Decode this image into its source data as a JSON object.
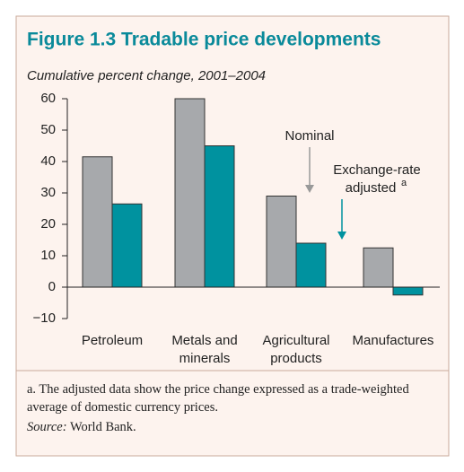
{
  "chart_data": {
    "type": "bar",
    "title": "Figure 1.3  Tradable price developments",
    "subtitle": "Cumulative percent change, 2001–2004",
    "categories": [
      "Petroleum",
      "Metals and minerals",
      "Agricultural products",
      "Manufactures"
    ],
    "series": [
      {
        "name": "Nominal",
        "color": "#a7a9ac",
        "values": [
          41.5,
          60,
          29,
          12.5
        ]
      },
      {
        "name": "Exchange-rate adjusted",
        "name_marker": "a",
        "color": "#00929f",
        "values": [
          26.5,
          45,
          14,
          -2.5
        ]
      }
    ],
    "ylim": [
      -10,
      60
    ],
    "yticks": [
      {
        "value": -10,
        "label": "−10"
      },
      0,
      10,
      20,
      30,
      40,
      50,
      60
    ],
    "footnote": "a. The adjusted data show the price change expressed as a trade-weighted average of domestic currency prices.",
    "source_label": "Source:",
    "source": "World Bank."
  }
}
